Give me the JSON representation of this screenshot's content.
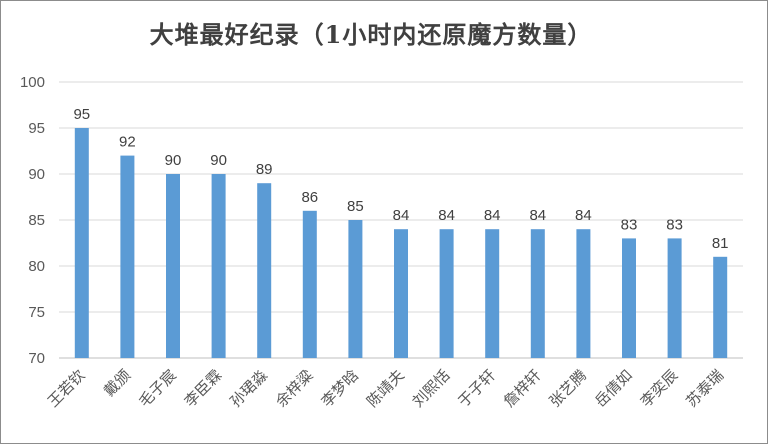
{
  "chart_data": {
    "type": "bar",
    "title": "大堆最好纪录（1小时内还原魔方数量）",
    "categories": [
      "王若钦",
      "戴颁",
      "毛子宸",
      "李臣霖",
      "孙珺淼",
      "余梓粱",
      "李梦晗",
      "陈靖夫",
      "刘熙恬",
      "于子轩",
      "詹梓轩",
      "张艺腾",
      "岳倩如",
      "李奕辰",
      "苏泰瑞"
    ],
    "values": [
      95,
      92,
      90,
      90,
      89,
      86,
      85,
      84,
      84,
      84,
      84,
      84,
      83,
      83,
      81
    ],
    "ylim": [
      70,
      100
    ],
    "yticks": [
      70,
      75,
      80,
      85,
      90,
      95,
      100
    ],
    "xlabel": "",
    "ylabel": "",
    "grid": true,
    "legend": "none",
    "colors": {
      "bar": "#5b9bd5",
      "grid": "#d9d9d9",
      "axis": "#bfbfbf"
    }
  }
}
